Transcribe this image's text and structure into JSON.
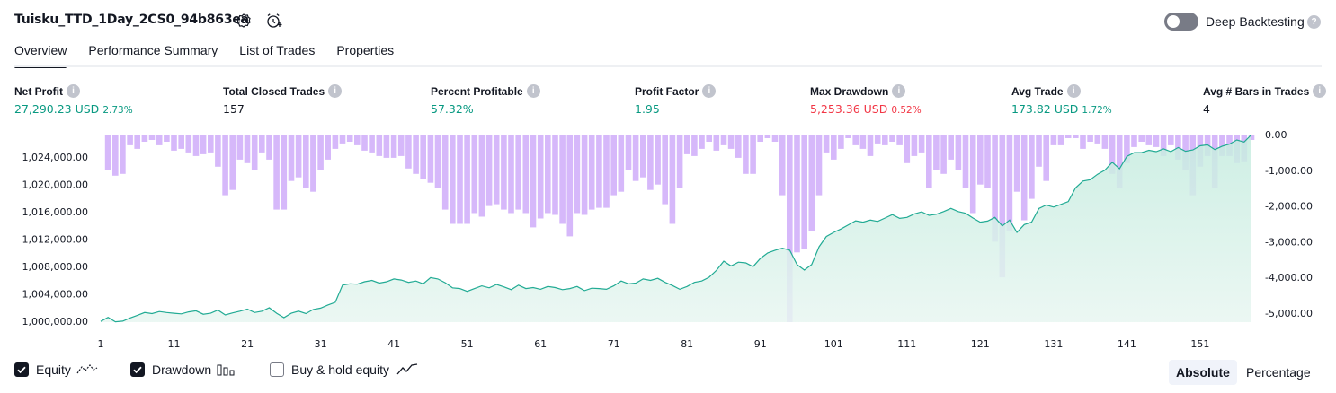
{
  "header": {
    "title": "Tuisku_TTD_1Day_2CS0_94b863ea",
    "deep_backtesting_label": "Deep Backtesting",
    "deep_backtesting_on": false
  },
  "tabs": [
    "Overview",
    "Performance Summary",
    "List of Trades",
    "Properties"
  ],
  "active_tab": "Overview",
  "metrics": {
    "net_profit": {
      "label": "Net Profit",
      "value": "27,290.23 USD",
      "pct": "2.73%"
    },
    "total_closed_trades": {
      "label": "Total Closed Trades",
      "value": "157"
    },
    "percent_profitable": {
      "label": "Percent Profitable",
      "value": "57.32%"
    },
    "profit_factor": {
      "label": "Profit Factor",
      "value": "1.95"
    },
    "max_drawdown": {
      "label": "Max Drawdown",
      "value": "5,253.36 USD",
      "pct": "0.52%"
    },
    "avg_trade": {
      "label": "Avg Trade",
      "value": "173.82 USD",
      "pct": "1.72%"
    },
    "avg_bars": {
      "label": "Avg # Bars in Trades",
      "value": "4"
    }
  },
  "chart_data": {
    "type": "area",
    "x_ticks": [
      "1",
      "11",
      "21",
      "31",
      "41",
      "51",
      "61",
      "71",
      "81",
      "91",
      "101",
      "111",
      "121",
      "131",
      "141",
      "151"
    ],
    "xlim": [
      1,
      158
    ],
    "equity_axis": {
      "ticks": [
        "1,000,000.00",
        "1,004,000.00",
        "1,008,000.00",
        "1,012,000.00",
        "1,016,000.00",
        "1,020,000.00",
        "1,024,000.00"
      ],
      "ylim": [
        999900,
        1027290
      ]
    },
    "drawdown_axis": {
      "ticks": [
        "0.00",
        "-1,000.00",
        "-2,000.00",
        "-3,000.00",
        "-4,000.00",
        "-5,000.00"
      ],
      "ylim": [
        -5253,
        0
      ]
    },
    "equity": [
      [
        1,
        1000000
      ],
      [
        2,
        1000600
      ],
      [
        3,
        999950
      ],
      [
        4,
        1000050
      ],
      [
        5,
        1000500
      ],
      [
        6,
        1000900
      ],
      [
        7,
        1001300
      ],
      [
        8,
        1001150
      ],
      [
        9,
        1001450
      ],
      [
        10,
        1001300
      ],
      [
        11,
        1001200
      ],
      [
        12,
        1001100
      ],
      [
        13,
        1001400
      ],
      [
        14,
        1001550
      ],
      [
        15,
        1001050
      ],
      [
        16,
        1001200
      ],
      [
        17,
        1001650
      ],
      [
        18,
        1000950
      ],
      [
        19,
        1001250
      ],
      [
        20,
        1001500
      ],
      [
        21,
        1001800
      ],
      [
        22,
        1001300
      ],
      [
        23,
        1001500
      ],
      [
        24,
        1002000
      ],
      [
        25,
        1001200
      ],
      [
        26,
        1000550
      ],
      [
        27,
        1001200
      ],
      [
        28,
        1001500
      ],
      [
        29,
        1001150
      ],
      [
        30,
        1001750
      ],
      [
        31,
        1001950
      ],
      [
        32,
        1002400
      ],
      [
        33,
        1002800
      ],
      [
        34,
        1005300
      ],
      [
        35,
        1005500
      ],
      [
        36,
        1005450
      ],
      [
        37,
        1005800
      ],
      [
        38,
        1006000
      ],
      [
        39,
        1005600
      ],
      [
        40,
        1005800
      ],
      [
        41,
        1006200
      ],
      [
        42,
        1006050
      ],
      [
        43,
        1005700
      ],
      [
        44,
        1005900
      ],
      [
        45,
        1005500
      ],
      [
        46,
        1006400
      ],
      [
        47,
        1006200
      ],
      [
        48,
        1005650
      ],
      [
        49,
        1004900
      ],
      [
        50,
        1004800
      ],
      [
        51,
        1004400
      ],
      [
        52,
        1004800
      ],
      [
        53,
        1005200
      ],
      [
        54,
        1004900
      ],
      [
        55,
        1005400
      ],
      [
        56,
        1005050
      ],
      [
        57,
        1004650
      ],
      [
        58,
        1005300
      ],
      [
        59,
        1004800
      ],
      [
        60,
        1004950
      ],
      [
        61,
        1004700
      ],
      [
        62,
        1005100
      ],
      [
        63,
        1004950
      ],
      [
        64,
        1004650
      ],
      [
        65,
        1004800
      ],
      [
        66,
        1005100
      ],
      [
        67,
        1004500
      ],
      [
        68,
        1004850
      ],
      [
        69,
        1004800
      ],
      [
        70,
        1004700
      ],
      [
        71,
        1005200
      ],
      [
        72,
        1005900
      ],
      [
        73,
        1005500
      ],
      [
        74,
        1005600
      ],
      [
        75,
        1006200
      ],
      [
        76,
        1006000
      ],
      [
        77,
        1006300
      ],
      [
        78,
        1005700
      ],
      [
        79,
        1005250
      ],
      [
        80,
        1004700
      ],
      [
        81,
        1005100
      ],
      [
        82,
        1005700
      ],
      [
        83,
        1005900
      ],
      [
        84,
        1006450
      ],
      [
        85,
        1007450
      ],
      [
        86,
        1008800
      ],
      [
        87,
        1008100
      ],
      [
        88,
        1008650
      ],
      [
        89,
        1008550
      ],
      [
        90,
        1008000
      ],
      [
        91,
        1009200
      ],
      [
        92,
        1010000
      ],
      [
        93,
        1010400
      ],
      [
        94,
        1010700
      ],
      [
        95,
        1010400
      ],
      [
        96,
        1008300
      ],
      [
        97,
        1007500
      ],
      [
        98,
        1008300
      ],
      [
        99,
        1010900
      ],
      [
        100,
        1012400
      ],
      [
        101,
        1013000
      ],
      [
        102,
        1013500
      ],
      [
        103,
        1014100
      ],
      [
        104,
        1014700
      ],
      [
        105,
        1014500
      ],
      [
        106,
        1014800
      ],
      [
        107,
        1014600
      ],
      [
        108,
        1015100
      ],
      [
        109,
        1015600
      ],
      [
        110,
        1015050
      ],
      [
        111,
        1015200
      ],
      [
        112,
        1015700
      ],
      [
        113,
        1016000
      ],
      [
        114,
        1015500
      ],
      [
        115,
        1015650
      ],
      [
        116,
        1016050
      ],
      [
        117,
        1016500
      ],
      [
        118,
        1016050
      ],
      [
        119,
        1015800
      ],
      [
        120,
        1015100
      ],
      [
        121,
        1014500
      ],
      [
        122,
        1014650
      ],
      [
        123,
        1015200
      ],
      [
        124,
        1013950
      ],
      [
        125,
        1014800
      ],
      [
        126,
        1013000
      ],
      [
        127,
        1014150
      ],
      [
        128,
        1014500
      ],
      [
        129,
        1016500
      ],
      [
        130,
        1017000
      ],
      [
        131,
        1016700
      ],
      [
        132,
        1017100
      ],
      [
        133,
        1017500
      ],
      [
        134,
        1019500
      ],
      [
        135,
        1020500
      ],
      [
        136,
        1020700
      ],
      [
        137,
        1021500
      ],
      [
        138,
        1022100
      ],
      [
        139,
        1023250
      ],
      [
        140,
        1022300
      ],
      [
        141,
        1024100
      ],
      [
        142,
        1024650
      ],
      [
        143,
        1024650
      ],
      [
        144,
        1025000
      ],
      [
        145,
        1024800
      ],
      [
        146,
        1025200
      ],
      [
        147,
        1024800
      ],
      [
        148,
        1025400
      ],
      [
        149,
        1024850
      ],
      [
        150,
        1025050
      ],
      [
        151,
        1025650
      ],
      [
        152,
        1025800
      ],
      [
        153,
        1025100
      ],
      [
        154,
        1025600
      ],
      [
        155,
        1025900
      ],
      [
        156,
        1026500
      ],
      [
        157,
        1026200
      ],
      [
        158,
        1027290
      ]
    ],
    "drawdown": [
      [
        1,
        -10
      ],
      [
        2,
        -1000
      ],
      [
        3,
        -1150
      ],
      [
        4,
        -1100
      ],
      [
        5,
        -300
      ],
      [
        6,
        -400
      ],
      [
        7,
        -200
      ],
      [
        8,
        -150
      ],
      [
        9,
        -300
      ],
      [
        10,
        -200
      ],
      [
        11,
        -450
      ],
      [
        12,
        -400
      ],
      [
        13,
        -500
      ],
      [
        14,
        -600
      ],
      [
        15,
        -550
      ],
      [
        16,
        -500
      ],
      [
        17,
        -900
      ],
      [
        18,
        -1700
      ],
      [
        19,
        -1550
      ],
      [
        20,
        -700
      ],
      [
        21,
        -800
      ],
      [
        22,
        -1000
      ],
      [
        23,
        -500
      ],
      [
        24,
        -700
      ],
      [
        25,
        -2100
      ],
      [
        26,
        -2100
      ],
      [
        27,
        -1300
      ],
      [
        28,
        -1200
      ],
      [
        29,
        -1500
      ],
      [
        30,
        -1600
      ],
      [
        31,
        -1000
      ],
      [
        32,
        -700
      ],
      [
        33,
        -400
      ],
      [
        34,
        -250
      ],
      [
        35,
        -200
      ],
      [
        36,
        -300
      ],
      [
        37,
        -450
      ],
      [
        38,
        -500
      ],
      [
        39,
        -600
      ],
      [
        40,
        -650
      ],
      [
        41,
        -650
      ],
      [
        42,
        -600
      ],
      [
        43,
        -950
      ],
      [
        44,
        -1100
      ],
      [
        45,
        -1250
      ],
      [
        46,
        -1350
      ],
      [
        47,
        -1500
      ],
      [
        48,
        -2100
      ],
      [
        49,
        -2500
      ],
      [
        50,
        -2500
      ],
      [
        51,
        -2500
      ],
      [
        52,
        -2200
      ],
      [
        53,
        -2300
      ],
      [
        54,
        -2000
      ],
      [
        55,
        -1950
      ],
      [
        56,
        -2100
      ],
      [
        57,
        -2200
      ],
      [
        58,
        -2100
      ],
      [
        59,
        -2200
      ],
      [
        60,
        -2600
      ],
      [
        61,
        -2350
      ],
      [
        62,
        -2200
      ],
      [
        63,
        -2250
      ],
      [
        64,
        -2500
      ],
      [
        65,
        -2850
      ],
      [
        66,
        -2200
      ],
      [
        67,
        -2250
      ],
      [
        68,
        -2100
      ],
      [
        69,
        -2050
      ],
      [
        70,
        -2050
      ],
      [
        71,
        -1700
      ],
      [
        72,
        -1600
      ],
      [
        73,
        -1000
      ],
      [
        74,
        -1300
      ],
      [
        75,
        -1200
      ],
      [
        76,
        -1550
      ],
      [
        77,
        -1400
      ],
      [
        78,
        -1950
      ],
      [
        79,
        -2500
      ],
      [
        80,
        -1500
      ],
      [
        81,
        -550
      ],
      [
        82,
        -600
      ],
      [
        83,
        -400
      ],
      [
        84,
        -200
      ],
      [
        85,
        -450
      ],
      [
        86,
        -300
      ],
      [
        87,
        -400
      ],
      [
        88,
        -650
      ],
      [
        89,
        -1100
      ],
      [
        90,
        -1100
      ],
      [
        91,
        -200
      ],
      [
        92,
        -100
      ],
      [
        93,
        -200
      ],
      [
        94,
        -1700
      ],
      [
        95,
        -5253
      ],
      [
        96,
        -3300
      ],
      [
        97,
        -3200
      ],
      [
        98,
        -2700
      ],
      [
        99,
        -1700
      ],
      [
        100,
        -500
      ],
      [
        101,
        -700
      ],
      [
        102,
        -400
      ],
      [
        103,
        -100
      ],
      [
        104,
        -300
      ],
      [
        105,
        -400
      ],
      [
        106,
        -600
      ],
      [
        107,
        -250
      ],
      [
        108,
        -300
      ],
      [
        109,
        -200
      ],
      [
        110,
        -300
      ],
      [
        111,
        -800
      ],
      [
        112,
        -600
      ],
      [
        113,
        -500
      ],
      [
        114,
        -1500
      ],
      [
        115,
        -1000
      ],
      [
        116,
        -1100
      ],
      [
        117,
        -700
      ],
      [
        118,
        -1000
      ],
      [
        119,
        -1500
      ],
      [
        120,
        -2200
      ],
      [
        121,
        -1400
      ],
      [
        122,
        -1500
      ],
      [
        123,
        -3000
      ],
      [
        124,
        -4000
      ],
      [
        125,
        -2700
      ],
      [
        126,
        -1600
      ],
      [
        127,
        -2400
      ],
      [
        128,
        -1800
      ],
      [
        129,
        -900
      ],
      [
        130,
        -1300
      ],
      [
        131,
        -300
      ],
      [
        132,
        -300
      ],
      [
        133,
        -100
      ],
      [
        134,
        -100
      ],
      [
        135,
        -400
      ],
      [
        136,
        -200
      ],
      [
        137,
        -250
      ],
      [
        138,
        -400
      ],
      [
        139,
        -1100
      ],
      [
        140,
        -1500
      ],
      [
        141,
        -800
      ],
      [
        142,
        -350
      ],
      [
        143,
        -200
      ],
      [
        144,
        -300
      ],
      [
        145,
        -350
      ],
      [
        146,
        -600
      ],
      [
        147,
        -300
      ],
      [
        148,
        -700
      ],
      [
        149,
        -1000
      ],
      [
        150,
        -1700
      ],
      [
        151,
        -900
      ],
      [
        152,
        -600
      ],
      [
        153,
        -1500
      ],
      [
        154,
        -600
      ],
      [
        155,
        -600
      ],
      [
        156,
        -800
      ],
      [
        157,
        -750
      ],
      [
        158,
        -150
      ]
    ],
    "colors": {
      "equity_line": "#22ab94",
      "equity_fill": "#d6f1eb",
      "drawdown_bar": "#d6b8fa"
    }
  },
  "legend": {
    "equity": {
      "label": "Equity",
      "checked": true
    },
    "drawdown": {
      "label": "Drawdown",
      "checked": true
    },
    "buy_hold": {
      "label": "Buy & hold equity",
      "checked": false
    }
  },
  "mode": {
    "absolute": "Absolute",
    "percentage": "Percentage",
    "selected": "Absolute"
  }
}
